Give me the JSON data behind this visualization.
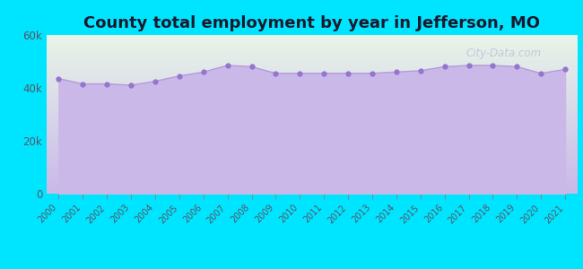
{
  "title": "County total employment by year in Jefferson, MO",
  "years": [
    2000,
    2001,
    2002,
    2003,
    2004,
    2005,
    2006,
    2007,
    2008,
    2009,
    2010,
    2011,
    2012,
    2013,
    2014,
    2015,
    2016,
    2017,
    2018,
    2019,
    2020,
    2021
  ],
  "values": [
    43500,
    41500,
    41500,
    41000,
    42500,
    44500,
    46000,
    48500,
    48000,
    45500,
    45500,
    45500,
    45500,
    45500,
    46000,
    46500,
    48000,
    48500,
    48500,
    48000,
    45500,
    47000
  ],
  "ylim": [
    0,
    60000
  ],
  "yticks": [
    0,
    20000,
    40000,
    60000
  ],
  "ytick_labels": [
    "0",
    "20k",
    "40k",
    "60k"
  ],
  "line_color": "#b39ddb",
  "fill_color": "#c9b8e8",
  "marker_color": "#9575cd",
  "background_outer": "#00e5ff",
  "grad_top_color": "#e8f5e9",
  "grad_bottom_color": "#c9b8e8",
  "title_fontsize": 13,
  "title_color": "#1a1a2e",
  "watermark": "City-Data.com",
  "tick_label_color": "#555566"
}
